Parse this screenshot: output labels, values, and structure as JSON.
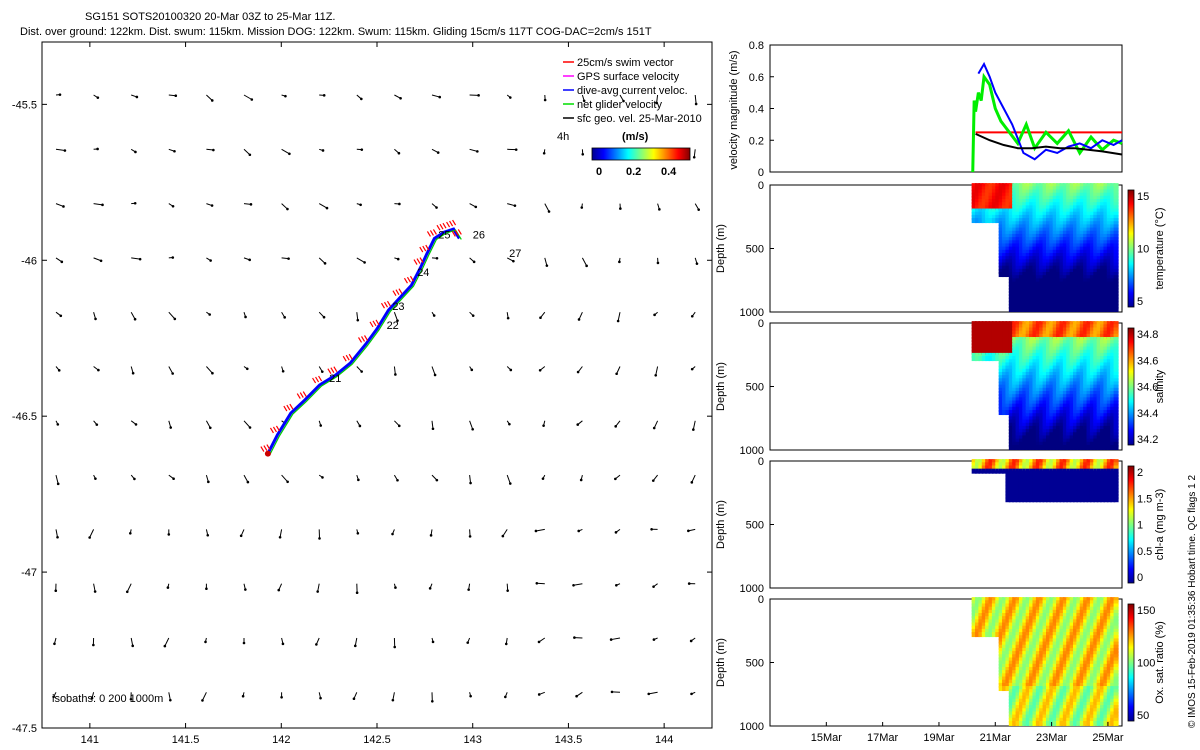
{
  "header": {
    "line1": "SG151 SOTS20100320 20-Mar 03Z to 25-Mar 11Z.",
    "line2": "Dist. over ground: 122km. Dist. swum: 115km. Mission DOG: 122km. Swum: 115km. Gliding 15cm/s 117T COG-DAC=2cm/s 151T"
  },
  "footer": "© IMOS 15-Feb-2019 01:35:36 Hobart time. QC flags 1  2",
  "chart_data": [
    {
      "id": "track_map",
      "type": "scatter",
      "x_ticks": [
        141,
        141.5,
        142,
        142.5,
        143,
        143.5,
        144
      ],
      "x_tick_labels": [
        "141",
        "141.5",
        "142",
        "142.5",
        "143",
        "143.5",
        "144"
      ],
      "y_ticks": [
        -45.5,
        -46,
        -46.5,
        -47,
        -47.5
      ],
      "y_tick_labels": [
        "-45.5",
        "-46",
        "-46.5",
        "-47",
        "-47.5"
      ],
      "xlim": [
        140.75,
        144.25
      ],
      "ylim": [
        -47.5,
        -45.3
      ],
      "legend": [
        {
          "label": "25cm/s swim vector",
          "color": "#ff0000"
        },
        {
          "label": "GPS surface velocity",
          "color": "#ff00ff"
        },
        {
          "label": "dive-avg current veloc.",
          "color": "#0000ff"
        },
        {
          "label": "net glider velocity",
          "color": "#00dd00"
        },
        {
          "label": "sfc geo. vel. 25-Mar-2010",
          "color": "#000000"
        }
      ],
      "legend_note": "4h",
      "colorbar": {
        "title": "(m/s)",
        "ticks": [
          "0",
          "0.2",
          "0.4"
        ]
      },
      "isobaths_label": "isobaths: 0   200  1000m",
      "track": [
        [
          141.93,
          -46.62
        ],
        [
          141.98,
          -46.56
        ],
        [
          142.05,
          -46.49
        ],
        [
          142.12,
          -46.45
        ],
        [
          142.2,
          -46.4
        ],
        [
          142.28,
          -46.37
        ],
        [
          142.36,
          -46.33
        ],
        [
          142.44,
          -46.27
        ],
        [
          142.5,
          -46.22
        ],
        [
          142.56,
          -46.16
        ],
        [
          142.62,
          -46.12
        ],
        [
          142.68,
          -46.08
        ],
        [
          142.73,
          -46.02
        ],
        [
          142.76,
          -45.98
        ],
        [
          142.8,
          -45.93
        ],
        [
          142.85,
          -45.91
        ],
        [
          142.9,
          -45.9
        ],
        [
          142.93,
          -45.93
        ]
      ],
      "day_labels": [
        {
          "label": "21",
          "x": 142.25,
          "y": -46.39
        },
        {
          "label": "22",
          "x": 142.55,
          "y": -46.22
        },
        {
          "label": "23",
          "x": 142.58,
          "y": -46.16
        },
        {
          "label": "24",
          "x": 142.71,
          "y": -46.05
        },
        {
          "label": "25",
          "x": 142.82,
          "y": -45.93
        },
        {
          "label": "26",
          "x": 143.0,
          "y": -45.93
        },
        {
          "label": "27",
          "x": 143.19,
          "y": -45.99
        }
      ]
    },
    {
      "id": "velocity_magnitude",
      "type": "line",
      "ylabel": "velocity magnitude (m/s)",
      "ylim": [
        0,
        0.8
      ],
      "y_ticks": [
        0,
        0.2,
        0.4,
        0.6,
        0.8
      ],
      "y_tick_labels": [
        "0",
        "0.2",
        "0.4",
        "0.6",
        "0.8"
      ],
      "xlim": [
        13,
        25.5
      ],
      "series": [
        {
          "color": "#ff0000",
          "x": [
            20.3,
            25.5
          ],
          "y": [
            0.25,
            0.25
          ]
        },
        {
          "color": "#00ee00",
          "x": [
            20.2,
            20.25,
            20.3,
            20.4,
            20.5,
            20.6,
            20.8,
            21.0,
            21.2,
            21.5,
            21.8,
            22.1,
            22.4,
            22.8,
            23.2,
            23.6,
            24.0,
            24.4,
            24.8,
            25.2,
            25.5
          ],
          "y": [
            0.0,
            0.45,
            0.38,
            0.5,
            0.45,
            0.6,
            0.55,
            0.4,
            0.32,
            0.25,
            0.18,
            0.3,
            0.15,
            0.25,
            0.18,
            0.26,
            0.12,
            0.22,
            0.14,
            0.2,
            0.18
          ]
        },
        {
          "color": "#0000ff",
          "x": [
            20.4,
            20.6,
            20.8,
            21.0,
            21.3,
            21.6,
            22.0,
            22.4,
            22.8,
            23.2,
            23.6,
            24.0,
            24.4,
            24.8,
            25.2,
            25.5
          ],
          "y": [
            0.62,
            0.68,
            0.6,
            0.5,
            0.4,
            0.3,
            0.12,
            0.08,
            0.14,
            0.12,
            0.16,
            0.18,
            0.15,
            0.2,
            0.17,
            0.2
          ]
        },
        {
          "color": "#000000",
          "x": [
            20.3,
            20.8,
            21.3,
            21.8,
            22.3,
            22.8,
            23.3,
            23.8,
            24.3,
            24.8,
            25.5
          ],
          "y": [
            0.24,
            0.2,
            0.17,
            0.15,
            0.15,
            0.16,
            0.15,
            0.15,
            0.14,
            0.13,
            0.11
          ]
        }
      ]
    },
    {
      "id": "temperature",
      "type": "heatmap",
      "ylabel": "Depth (m)",
      "ylim": [
        1000,
        0
      ],
      "y_tick_labels": [
        "0",
        "500",
        "1000"
      ],
      "cbar_label": "temperature (°C)",
      "cbar_ticks": [
        "15",
        "10",
        "5"
      ],
      "cbar_range": [
        4,
        15
      ]
    },
    {
      "id": "salinity",
      "type": "heatmap",
      "ylabel": "Depth (m)",
      "ylim": [
        1000,
        0
      ],
      "y_tick_labels": [
        "0",
        "500",
        "1000"
      ],
      "cbar_label": "salinity",
      "cbar_ticks": [
        "34.8",
        "34.6",
        "34.6",
        "34.4",
        "34.2"
      ],
      "cbar_range": [
        34.1,
        34.9
      ]
    },
    {
      "id": "chlorophyll",
      "type": "heatmap",
      "ylabel": "Depth (m)",
      "ylim": [
        1000,
        0
      ],
      "y_tick_labels": [
        "0",
        "500",
        "1000"
      ],
      "cbar_label": "chl-a (mg m-3)",
      "cbar_ticks": [
        "2",
        "1.5",
        "1",
        "0.5",
        "0"
      ],
      "cbar_range": [
        0,
        2
      ]
    },
    {
      "id": "oxygen",
      "type": "heatmap",
      "ylabel": "Depth (m)",
      "ylim": [
        1000,
        0
      ],
      "y_tick_labels": [
        "0",
        "500",
        "1000"
      ],
      "cbar_label": "Ox. sat. ratio (%)",
      "cbar_ticks": [
        "150",
        "100",
        "50"
      ],
      "cbar_range": [
        20,
        170
      ],
      "x_tick_labels": [
        "15Mar",
        "17Mar",
        "19Mar",
        "21Mar",
        "23Mar",
        "25Mar"
      ],
      "x_ticks": [
        15,
        17,
        19,
        21,
        23,
        25
      ]
    }
  ]
}
